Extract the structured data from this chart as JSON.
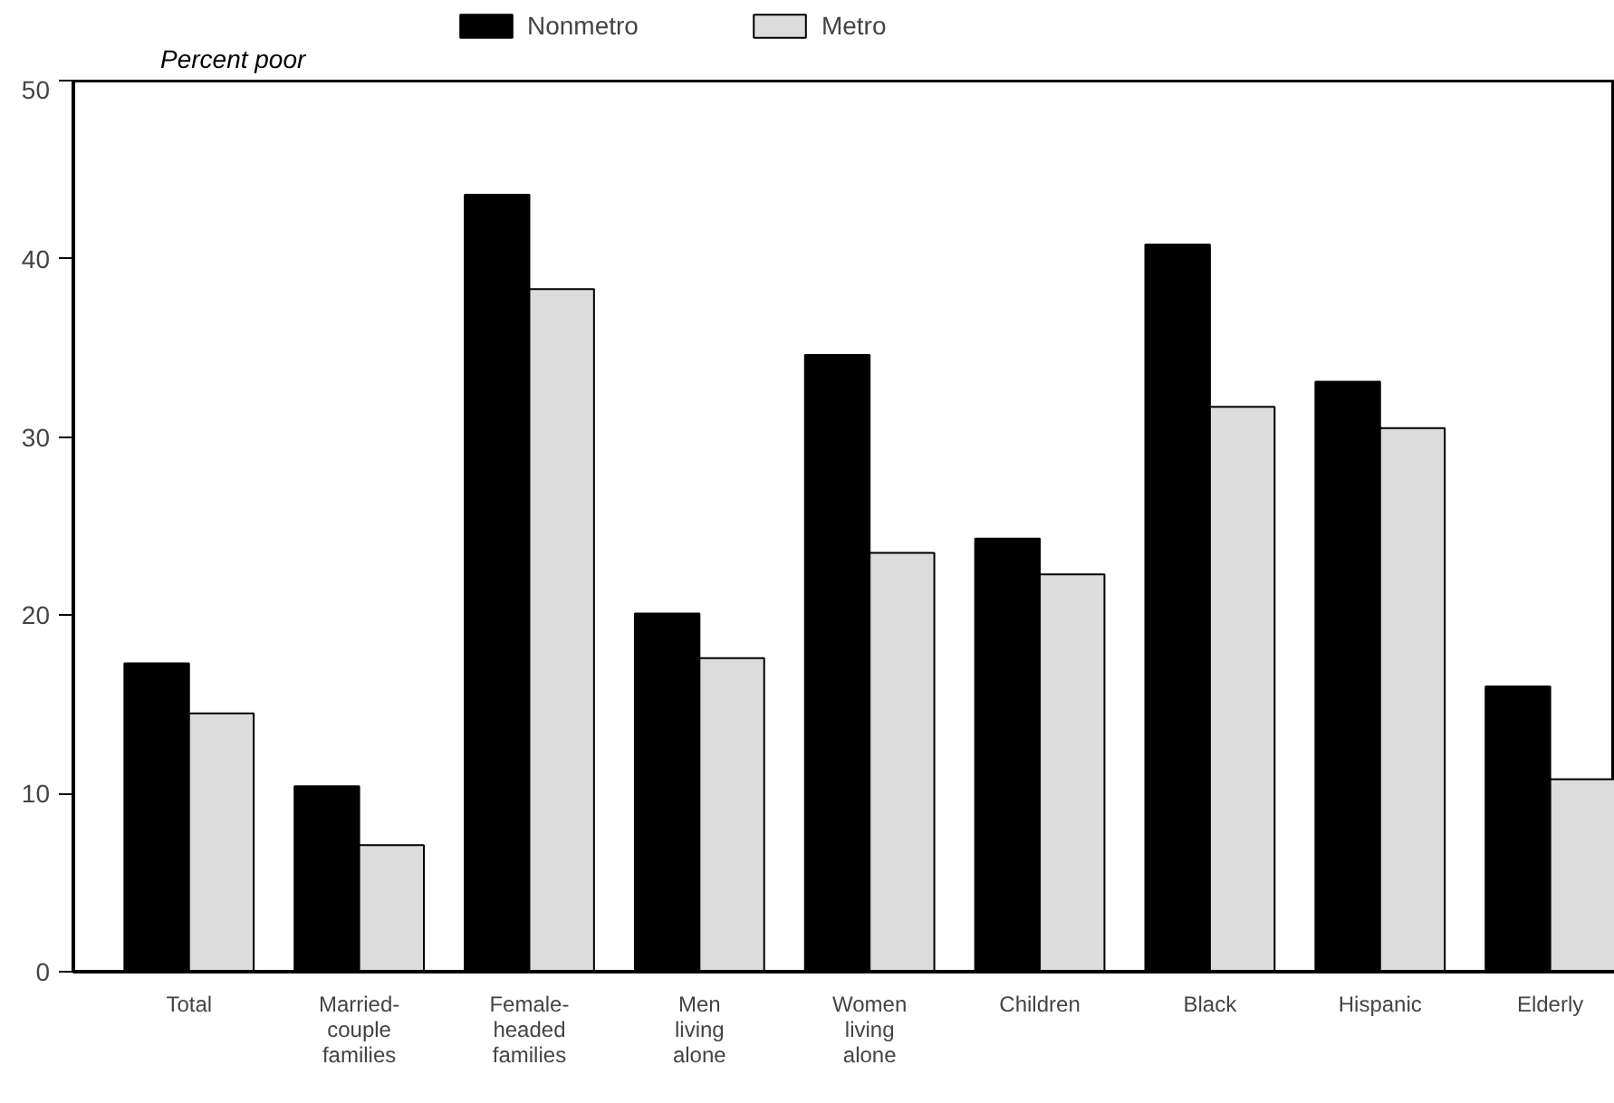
{
  "chart_data": {
    "type": "bar",
    "ylabel": "Percent poor",
    "categories": [
      "Total",
      "Married-\ncouple\nfamilies",
      "Female-\nheaded\nfamilies",
      "Men\nliving\nalone",
      "Women\nliving\nalone",
      "Children",
      "Black",
      "Hispanic",
      "Elderly"
    ],
    "series": [
      {
        "name": "Nonmetro",
        "color": "#000000",
        "values": [
          17.3,
          10.4,
          43.6,
          20.1,
          34.6,
          24.3,
          40.8,
          33.1,
          16.0
        ]
      },
      {
        "name": "Metro",
        "color": "#dcdcdc",
        "values": [
          14.5,
          7.1,
          38.3,
          17.6,
          23.5,
          22.3,
          31.7,
          30.5,
          10.8
        ]
      }
    ],
    "ylim": [
      0,
      50
    ],
    "yticks": [
      0,
      10,
      20,
      30,
      40,
      50
    ],
    "grid": false,
    "legend": "top"
  }
}
